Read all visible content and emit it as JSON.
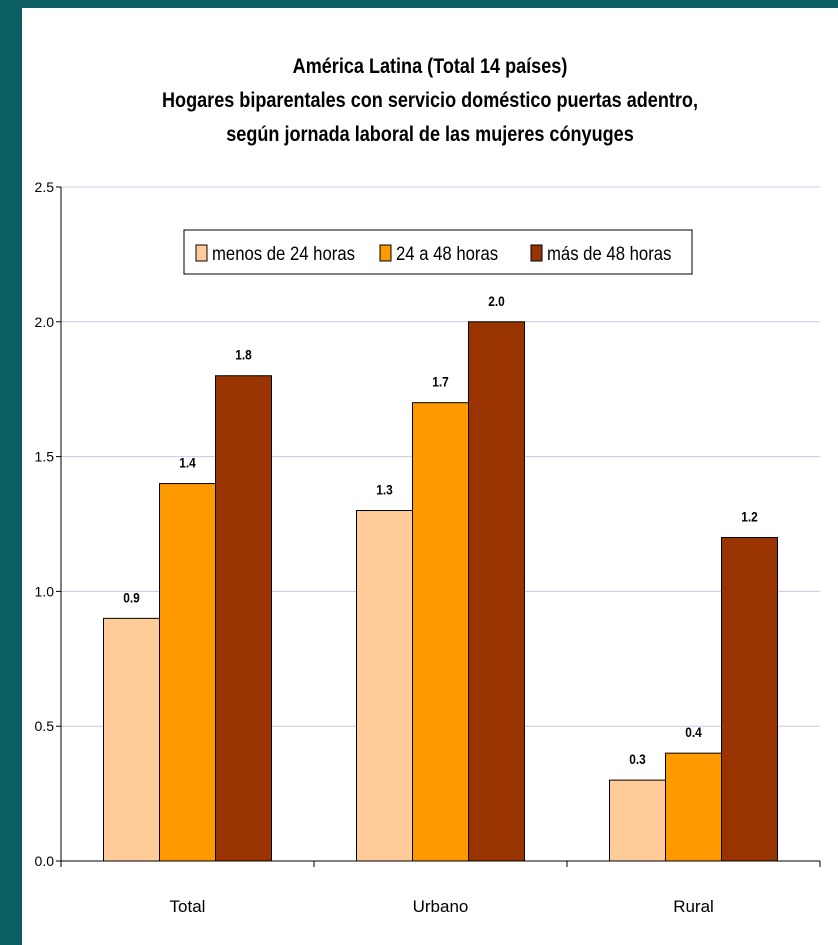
{
  "chart_data": {
    "type": "bar",
    "title": [
      "América Latina (Total 14 países)",
      "Hogares biparentales con servicio doméstico puertas adentro,",
      "según jornada laboral de las mujeres  cónyuges"
    ],
    "categories": [
      "Total",
      "Urbano",
      "Rural"
    ],
    "series": [
      {
        "name": "menos de 24 horas",
        "values": [
          0.9,
          1.3,
          0.3
        ],
        "labels": [
          "0.9",
          "1.3",
          "0.3"
        ],
        "color": "#ffcc99"
      },
      {
        "name": "24 a 48 horas",
        "values": [
          1.4,
          1.7,
          0.4
        ],
        "labels": [
          "1.4",
          "1.7",
          "0.4"
        ],
        "color": "#ff9900"
      },
      {
        "name": "más de 48 horas",
        "values": [
          1.8,
          2.0,
          1.2
        ],
        "labels": [
          "1.8",
          "2.0",
          "1.2"
        ],
        "color": "#993300"
      }
    ],
    "ylim": [
      0,
      2.5
    ],
    "yticks": [
      "0.0",
      "0.5",
      "1.0",
      "1.5",
      "2.0",
      "2.5"
    ],
    "xlabel": "",
    "ylabel": "",
    "grid": true,
    "legend_position": "top-center"
  },
  "colors": {
    "background": "#0b5f63",
    "panel": "#ffffff",
    "gridline": "#c8c8e8"
  }
}
